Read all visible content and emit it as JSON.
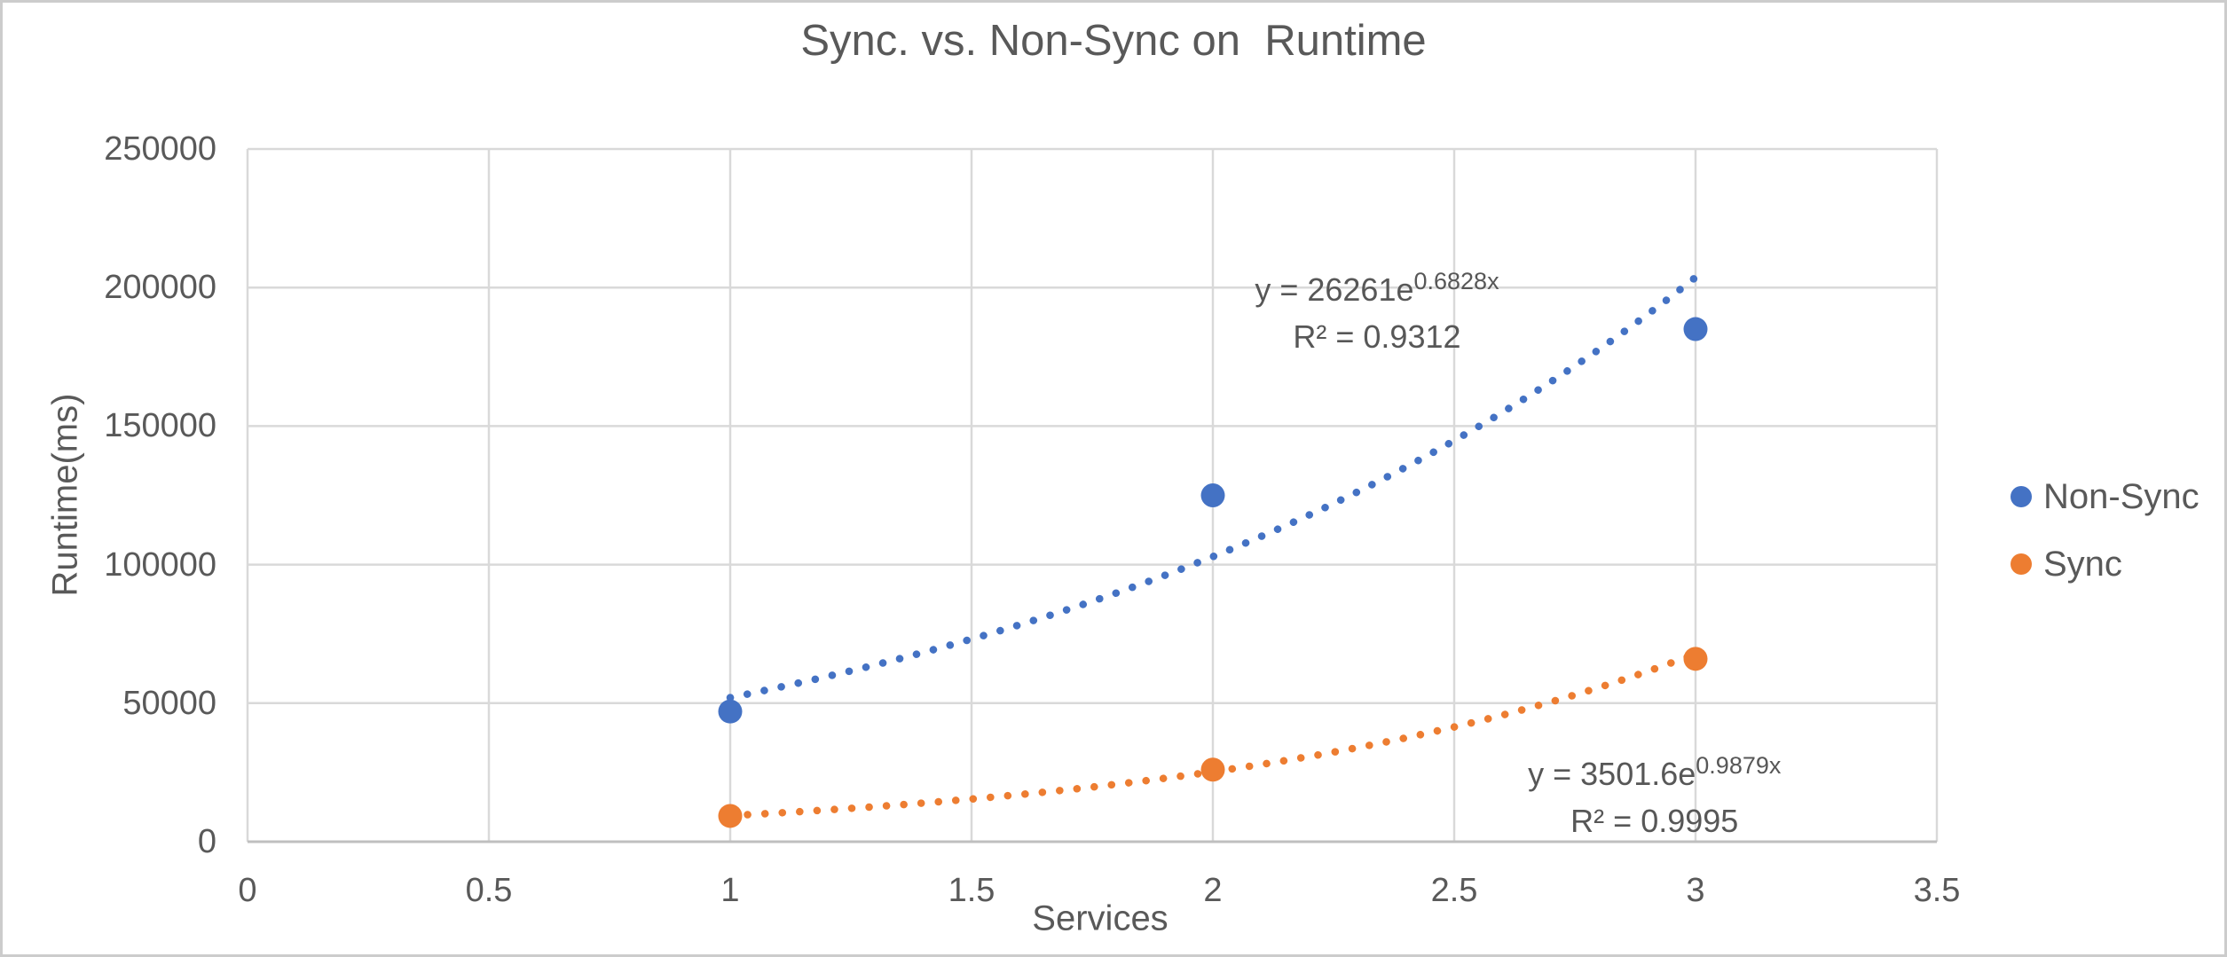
{
  "chart_data": {
    "type": "scatter",
    "title": "Sync. vs. Non-Sync on  Runtime",
    "xlabel": "Services",
    "ylabel": "Runtime(ms)",
    "xlim": [
      0,
      3.5
    ],
    "ylim": [
      0,
      250000
    ],
    "x_tick_labels": [
      "0",
      "0.5",
      "1",
      "1.5",
      "2",
      "2.5",
      "3",
      "3.5"
    ],
    "y_tick_labels": [
      "0",
      "50000",
      "100000",
      "150000",
      "200000",
      "250000"
    ],
    "grid": true,
    "legend_position": "right",
    "colors": {
      "non_sync": "#4472C4",
      "sync": "#ED7D31",
      "text": "#595959",
      "gridline": "#D9D9D9",
      "axis_line": "#BFBFBF"
    },
    "series": [
      {
        "name": "Non-Sync",
        "color_key": "non_sync",
        "points": [
          {
            "x": 1,
            "y": 47000
          },
          {
            "x": 2,
            "y": 125000
          },
          {
            "x": 3,
            "y": 185000
          }
        ],
        "trendline": {
          "type": "exponential",
          "a": 26261,
          "b": 0.6828,
          "x_range": [
            1,
            3
          ],
          "eq_base": "y = 26261e",
          "eq_exp": "0.6828x",
          "r2_label": "R² = 0.9312",
          "label_anchor": {
            "x": 2.34,
            "y": 199000
          }
        }
      },
      {
        "name": "Sync",
        "color_key": "sync",
        "points": [
          {
            "x": 1,
            "y": 9300
          },
          {
            "x": 2,
            "y": 26000
          },
          {
            "x": 3,
            "y": 66000
          }
        ],
        "trendline": {
          "type": "exponential",
          "a": 3501.6,
          "b": 0.9879,
          "x_range": [
            1,
            3
          ],
          "eq_base": "y = 3501.6e",
          "eq_exp": "0.9879x",
          "r2_label": "R² = 0.9995",
          "label_anchor": {
            "x": 2.915,
            "y": 24300
          }
        }
      }
    ]
  }
}
